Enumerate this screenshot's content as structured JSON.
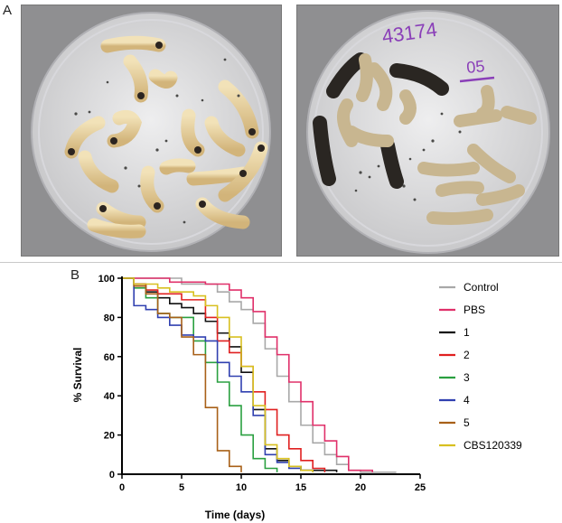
{
  "panels": {
    "a_label": "A",
    "b_label": "B"
  },
  "photo_right": {
    "handwriting_line1": "43174",
    "handwriting_line2": "05"
  },
  "chart_data": {
    "type": "line",
    "step": true,
    "xlabel": "Time (days)",
    "ylabel": "% Survival",
    "xlim": [
      0,
      25
    ],
    "ylim": [
      0,
      100
    ],
    "xticks": [
      0,
      5,
      10,
      15,
      20,
      25
    ],
    "yticks": [
      0,
      20,
      40,
      60,
      80,
      100
    ],
    "grid": false,
    "legend_position": "right",
    "series": [
      {
        "name": "Control",
        "color": "#a8a8a8",
        "x": [
          0,
          1,
          5,
          8,
          9,
          10,
          11,
          12,
          13,
          14,
          15,
          16,
          17,
          18,
          19,
          20,
          23
        ],
        "y": [
          100,
          100,
          97,
          93,
          88,
          84,
          77,
          64,
          50,
          37,
          25,
          16,
          10,
          5,
          2,
          1,
          1
        ]
      },
      {
        "name": "PBS",
        "color": "#e0306a",
        "x": [
          0,
          1,
          4,
          7,
          9,
          10,
          11,
          12,
          13,
          14,
          15,
          16,
          17,
          18,
          19,
          21
        ],
        "y": [
          100,
          100,
          98,
          97,
          94,
          90,
          83,
          70,
          61,
          47,
          37,
          25,
          17,
          9,
          2,
          1
        ]
      },
      {
        "name": "1",
        "color": "#111111",
        "x": [
          0,
          1,
          2,
          3,
          4,
          5,
          6,
          7,
          8,
          9,
          10,
          11,
          12,
          13,
          14,
          15,
          18
        ],
        "y": [
          100,
          97,
          93,
          90,
          87,
          85,
          82,
          78,
          72,
          65,
          52,
          33,
          13,
          7,
          4,
          2,
          1
        ]
      },
      {
        "name": "2",
        "color": "#e02020",
        "x": [
          0,
          1,
          2,
          3,
          5,
          7,
          8,
          9,
          10,
          11,
          12,
          13,
          14,
          15,
          16,
          17
        ],
        "y": [
          100,
          97,
          94,
          92,
          89,
          80,
          68,
          62,
          55,
          42,
          33,
          20,
          13,
          7,
          3,
          1
        ]
      },
      {
        "name": "3",
        "color": "#2aa040",
        "x": [
          0,
          1,
          2,
          3,
          4,
          6,
          7,
          8,
          9,
          10,
          11,
          12,
          13
        ],
        "y": [
          100,
          95,
          90,
          82,
          80,
          68,
          57,
          47,
          35,
          20,
          8,
          3,
          1
        ]
      },
      {
        "name": "4",
        "color": "#3040b0",
        "x": [
          0,
          1,
          2,
          3,
          4,
          5,
          6,
          7,
          8,
          9,
          10,
          11,
          12,
          13,
          14,
          15,
          16
        ],
        "y": [
          100,
          86,
          84,
          80,
          76,
          71,
          70,
          68,
          57,
          50,
          42,
          30,
          10,
          6,
          3,
          2,
          1
        ]
      },
      {
        "name": "5",
        "color": "#a86018",
        "x": [
          0,
          1,
          2,
          3,
          4,
          5,
          6,
          7,
          8,
          9,
          10
        ],
        "y": [
          100,
          96,
          92,
          82,
          80,
          70,
          61,
          34,
          12,
          4,
          1
        ]
      },
      {
        "name": "CBS120339",
        "color": "#d8c020",
        "x": [
          0,
          1,
          3,
          4,
          6,
          7,
          8,
          9,
          10,
          11,
          12,
          13,
          14,
          15,
          16
        ],
        "y": [
          100,
          97,
          95,
          93,
          91,
          86,
          80,
          70,
          55,
          35,
          15,
          8,
          4,
          2,
          1
        ]
      }
    ]
  }
}
